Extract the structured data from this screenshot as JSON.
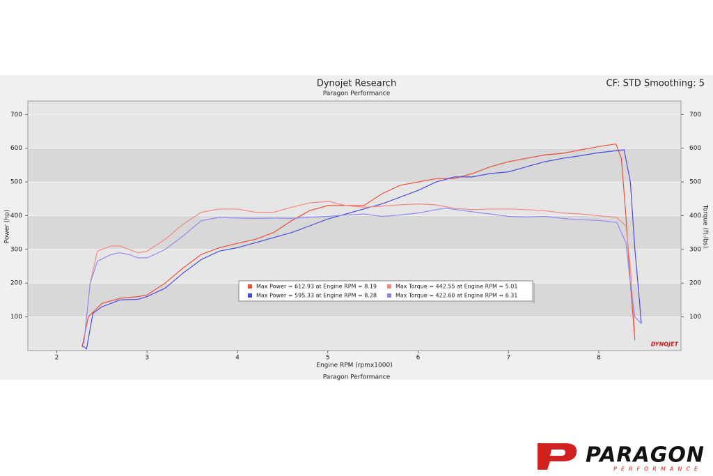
{
  "chart_data": {
    "type": "line",
    "title": "Dynojet Research",
    "subtitle": "Paragon Performance",
    "corner_note": "CF: STD Smoothing: 5",
    "x_label": "Engine RPM (rpmx1000)",
    "x_sublabel": "Paragon Performance",
    "y_label": "Power (hp)",
    "y2_label": "Torque (ft-lbs)",
    "watermark": "DYNOJET",
    "xlim": [
      1.68,
      8.91
    ],
    "xticks": [
      2,
      3,
      4,
      5,
      6,
      7,
      8
    ],
    "ylim": [
      0,
      740
    ],
    "yticks": [
      100,
      200,
      300,
      400,
      500,
      600,
      700
    ],
    "y2lim": [
      0,
      740
    ],
    "y2ticks": [
      100,
      200,
      300,
      400,
      500,
      600,
      700
    ],
    "grid": true,
    "series": [
      {
        "name": "Max Power = 612.93 at Engine RPM = 8.19",
        "color": "#e8503c",
        "x": [
          2.28,
          2.35,
          2.5,
          2.7,
          2.9,
          3.0,
          3.2,
          3.4,
          3.6,
          3.8,
          4.0,
          4.2,
          4.4,
          4.6,
          4.8,
          5.0,
          5.2,
          5.4,
          5.6,
          5.8,
          6.0,
          6.2,
          6.4,
          6.6,
          6.8,
          7.0,
          7.2,
          7.4,
          7.6,
          7.8,
          8.0,
          8.19,
          8.25,
          8.3,
          8.35,
          8.4
        ],
        "values": [
          10,
          100,
          140,
          155,
          160,
          165,
          200,
          245,
          285,
          305,
          318,
          330,
          350,
          385,
          415,
          430,
          430,
          430,
          465,
          490,
          500,
          510,
          510,
          525,
          545,
          560,
          570,
          580,
          585,
          595,
          605,
          612.93,
          570,
          400,
          200,
          30
        ]
      },
      {
        "name": "Max Power = 595.33 at Engine RPM = 8.28",
        "color": "#4a4ae0",
        "x": [
          2.28,
          2.33,
          2.4,
          2.5,
          2.7,
          2.9,
          3.0,
          3.2,
          3.4,
          3.6,
          3.8,
          4.0,
          4.2,
          4.4,
          4.6,
          4.8,
          5.0,
          5.2,
          5.4,
          5.6,
          5.8,
          6.0,
          6.2,
          6.4,
          6.6,
          6.8,
          7.0,
          7.2,
          7.4,
          7.6,
          7.8,
          8.0,
          8.2,
          8.28,
          8.35,
          8.4,
          8.45,
          8.47
        ],
        "values": [
          15,
          5,
          110,
          130,
          150,
          152,
          160,
          185,
          230,
          270,
          295,
          305,
          320,
          335,
          350,
          370,
          390,
          405,
          420,
          435,
          455,
          475,
          500,
          515,
          515,
          525,
          530,
          545,
          560,
          570,
          578,
          587,
          593,
          595.33,
          500,
          300,
          150,
          80
        ]
      },
      {
        "name": "Max Torque = 442.55 at Engine RPM = 5.01",
        "color": "#f08a80",
        "axis": "y2",
        "x": [
          2.3,
          2.37,
          2.45,
          2.6,
          2.7,
          2.9,
          3.0,
          3.2,
          3.4,
          3.6,
          3.8,
          4.0,
          4.2,
          4.4,
          4.6,
          4.8,
          5.01,
          5.2,
          5.4,
          5.6,
          5.8,
          6.0,
          6.2,
          6.4,
          6.6,
          6.8,
          7.0,
          7.2,
          7.4,
          7.6,
          7.8,
          8.0,
          8.2,
          8.3,
          8.35,
          8.4
        ],
        "values": [
          20,
          200,
          295,
          310,
          310,
          290,
          295,
          330,
          375,
          410,
          420,
          420,
          410,
          410,
          425,
          438,
          442.55,
          430,
          425,
          428,
          432,
          435,
          432,
          422,
          418,
          420,
          420,
          418,
          415,
          408,
          405,
          400,
          395,
          370,
          250,
          50
        ]
      },
      {
        "name": "Max Torque = 422.60 at Engine RPM = 6.31",
        "color": "#8c8cf0",
        "axis": "y2",
        "x": [
          2.3,
          2.37,
          2.45,
          2.6,
          2.7,
          2.8,
          2.9,
          3.0,
          3.2,
          3.4,
          3.6,
          3.8,
          4.0,
          4.2,
          4.4,
          4.6,
          4.8,
          5.0,
          5.2,
          5.4,
          5.6,
          5.8,
          6.0,
          6.2,
          6.31,
          6.5,
          6.8,
          7.0,
          7.2,
          7.4,
          7.6,
          7.8,
          8.0,
          8.2,
          8.3,
          8.35,
          8.4,
          8.47
        ],
        "values": [
          20,
          200,
          265,
          285,
          290,
          285,
          275,
          275,
          300,
          340,
          385,
          395,
          393,
          392,
          393,
          392,
          395,
          398,
          402,
          405,
          398,
          402,
          408,
          418,
          422.6,
          415,
          405,
          398,
          396,
          398,
          392,
          388,
          386,
          380,
          320,
          200,
          100,
          80
        ]
      }
    ]
  },
  "logo": {
    "name": "PARAGON",
    "tagline": "PERFORMANCE"
  }
}
